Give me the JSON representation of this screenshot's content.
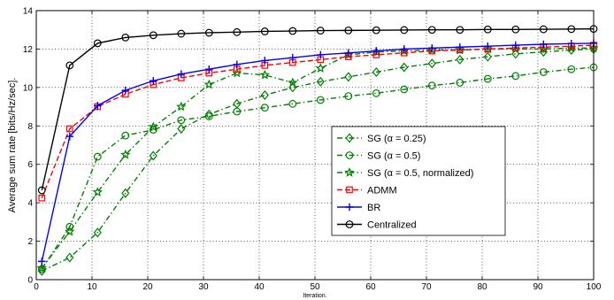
{
  "chart_data": {
    "type": "line",
    "title": "",
    "xlabel": "Iteration.",
    "ylabel": "Average sum rate [bits/Hz/sec].",
    "xlim": [
      0,
      100
    ],
    "ylim": [
      0,
      14
    ],
    "xticks": [
      0,
      10,
      20,
      30,
      40,
      50,
      60,
      70,
      80,
      90,
      100
    ],
    "yticks": [
      0,
      2,
      4,
      6,
      8,
      10,
      12,
      14
    ],
    "grid": true,
    "legend_position": "center-right",
    "series": [
      {
        "name": "SG (α = 0.25)",
        "color": "#008000",
        "line": "dash-dot",
        "marker": "diamond",
        "x": [
          1,
          6,
          11,
          16,
          21,
          26,
          31,
          36,
          41,
          46,
          51,
          56,
          61,
          66,
          71,
          76,
          81,
          86,
          91,
          96,
          100
        ],
        "y": [
          0.45,
          1.15,
          2.45,
          4.5,
          6.45,
          7.85,
          8.6,
          9.15,
          9.6,
          10.0,
          10.3,
          10.55,
          10.8,
          11.05,
          11.25,
          11.45,
          11.6,
          11.75,
          11.85,
          11.95,
          12.0
        ]
      },
      {
        "name": "SG (α = 0.5)",
        "color": "#008000",
        "line": "dash-dot",
        "marker": "circle",
        "x": [
          1,
          6,
          11,
          16,
          21,
          26,
          31,
          36,
          41,
          46,
          51,
          56,
          61,
          66,
          71,
          76,
          81,
          86,
          91,
          96,
          100
        ],
        "y": [
          0.55,
          2.75,
          6.4,
          7.5,
          7.8,
          8.3,
          8.5,
          8.75,
          8.95,
          9.15,
          9.35,
          9.55,
          9.7,
          9.9,
          10.1,
          10.25,
          10.45,
          10.6,
          10.8,
          10.95,
          11.05
        ]
      },
      {
        "name": "SG (α = 0.5, normalized)",
        "color": "#008000",
        "line": "dash-dot",
        "marker": "star",
        "x": [
          1,
          6,
          11,
          16,
          21,
          26,
          31,
          36,
          41,
          46,
          51,
          56,
          61,
          66,
          71,
          76,
          81,
          86,
          91,
          96,
          100
        ],
        "y": [
          0.6,
          2.5,
          4.55,
          6.5,
          7.95,
          9.0,
          10.15,
          10.75,
          10.65,
          10.25,
          11.0,
          11.7,
          11.85,
          11.9,
          11.95,
          11.95,
          12.0,
          12.0,
          12.0,
          12.05,
          12.05
        ]
      },
      {
        "name": "ADMM",
        "color": "#ff0000",
        "line": "dash",
        "marker": "square",
        "x": [
          1,
          6,
          11,
          16,
          21,
          26,
          31,
          36,
          41,
          46,
          51,
          56,
          61,
          66,
          71,
          76,
          81,
          86,
          91,
          96,
          100
        ],
        "y": [
          4.25,
          7.85,
          9.0,
          9.65,
          10.15,
          10.5,
          10.75,
          10.95,
          11.15,
          11.3,
          11.45,
          11.6,
          11.7,
          11.8,
          11.9,
          11.95,
          12.0,
          12.05,
          12.1,
          12.15,
          12.2
        ]
      },
      {
        "name": "BR",
        "color": "#0000ff",
        "line": "solid",
        "marker": "plus",
        "x": [
          1,
          6,
          11,
          16,
          21,
          26,
          31,
          36,
          41,
          46,
          51,
          56,
          61,
          66,
          71,
          76,
          81,
          86,
          91,
          96,
          100
        ],
        "y": [
          0.95,
          7.45,
          9.05,
          9.85,
          10.35,
          10.7,
          10.95,
          11.2,
          11.4,
          11.55,
          11.7,
          11.8,
          11.9,
          12.0,
          12.05,
          12.1,
          12.15,
          12.2,
          12.25,
          12.28,
          12.3
        ]
      },
      {
        "name": "Centralized",
        "color": "#000000",
        "line": "solid",
        "marker": "circle",
        "x": [
          1,
          6,
          11,
          16,
          21,
          26,
          31,
          36,
          41,
          46,
          51,
          56,
          61,
          66,
          71,
          76,
          81,
          86,
          91,
          96,
          100
        ],
        "y": [
          4.65,
          11.15,
          12.3,
          12.6,
          12.72,
          12.8,
          12.85,
          12.88,
          12.92,
          12.94,
          12.96,
          12.97,
          12.98,
          12.99,
          13.0,
          13.0,
          13.02,
          13.02,
          13.03,
          13.04,
          13.05
        ]
      }
    ]
  }
}
